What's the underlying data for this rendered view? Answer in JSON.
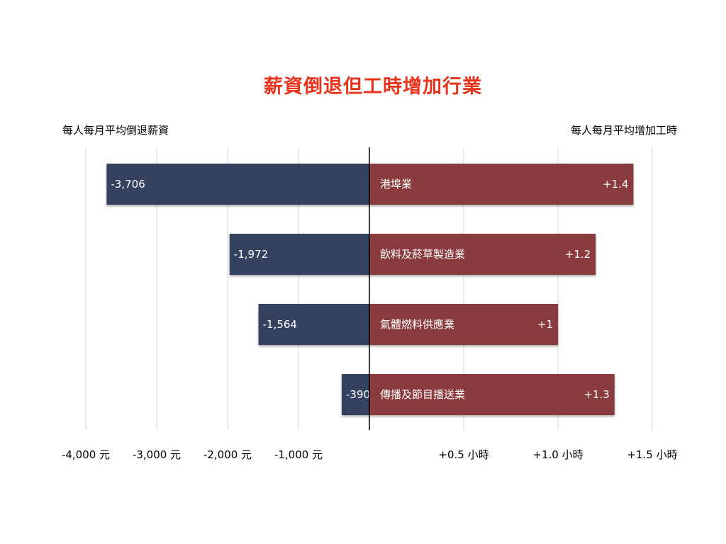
{
  "title": "薪資倒退但工時增加行業",
  "left_axis_title": "每人每月平均倒退薪資",
  "right_axis_title": "每人每月平均增加工時",
  "colors": {
    "title": "#e8331c",
    "wage_bar": "#34425e",
    "hours_bar": "#8a3a3c",
    "grid": "#d6d6d6",
    "center_line": "#000000",
    "bar_text": "#ffffff"
  },
  "chart_data": {
    "type": "bar",
    "orientation": "horizontal",
    "title": "薪資倒退但工時增加行業",
    "categories": [
      "港埠業",
      "飲料及菸草製造業",
      "氣體燃料供應業",
      "傳播及節目播送業"
    ],
    "series": [
      {
        "name": "每人每月平均倒退薪資",
        "values": [
          -3706,
          -1972,
          -1564,
          -390
        ],
        "labels": [
          "-3,706",
          "-1,972",
          "-1,564",
          "-390"
        ]
      },
      {
        "name": "每人每月平均增加工時",
        "values": [
          1.4,
          1.2,
          1.0,
          1.3
        ],
        "labels": [
          "+1.4",
          "+1.2",
          "+1",
          "+1.3"
        ]
      }
    ],
    "left_axis": {
      "label": "每人每月平均倒退薪資",
      "range": [
        -4000,
        0
      ],
      "ticks": [
        -4000,
        -3000,
        -2000,
        -1000
      ],
      "tick_labels": [
        "-4,000 元",
        "-3,000 元",
        "-2,000 元",
        "-1,000 元"
      ]
    },
    "right_axis": {
      "label": "每人每月平均增加工時",
      "range": [
        0,
        1.5
      ],
      "ticks": [
        0.5,
        1.0,
        1.5
      ],
      "tick_labels": [
        "+0.5 小時",
        "+1.0 小時",
        "+1.5 小時"
      ]
    },
    "grid": true,
    "legend": "none"
  }
}
